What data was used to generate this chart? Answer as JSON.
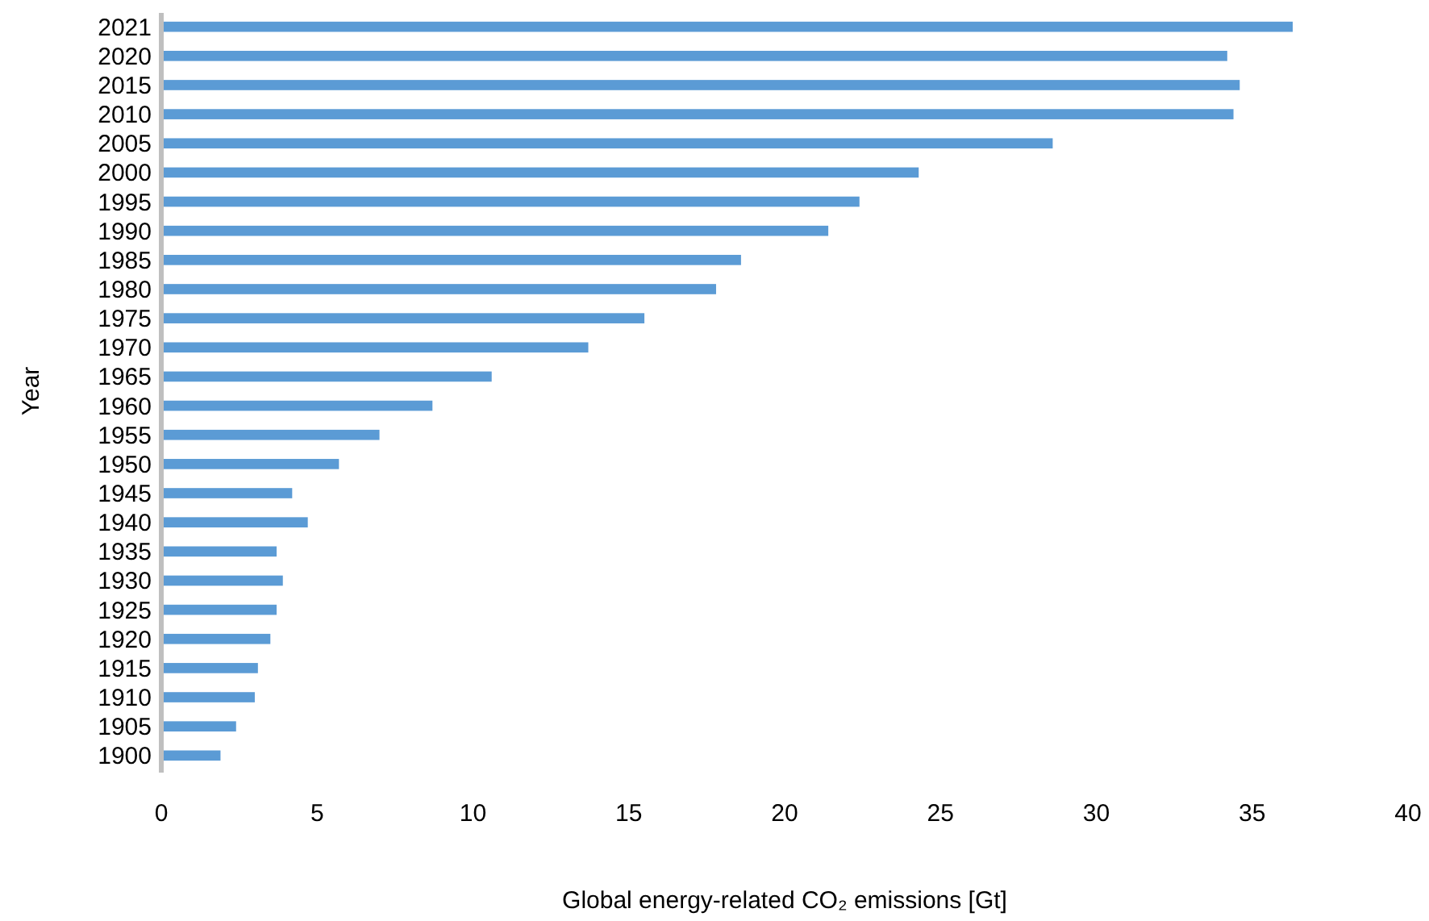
{
  "chart_data": {
    "type": "bar",
    "orientation": "horizontal",
    "xlabel": "Global energy-related CO₂ emissions [Gt]",
    "ylabel": "Year",
    "categories": [
      "2021",
      "2020",
      "2015",
      "2010",
      "2005",
      "2000",
      "1995",
      "1990",
      "1985",
      "1980",
      "1975",
      "1970",
      "1965",
      "1960",
      "1955",
      "1950",
      "1945",
      "1940",
      "1935",
      "1930",
      "1925",
      "1920",
      "1915",
      "1910",
      "1905",
      "1900"
    ],
    "values": [
      36.3,
      34.2,
      34.6,
      34.4,
      28.6,
      24.3,
      22.4,
      21.4,
      18.6,
      17.8,
      15.5,
      13.7,
      10.6,
      8.7,
      7.0,
      5.7,
      4.2,
      4.7,
      3.7,
      3.9,
      3.7,
      3.5,
      3.1,
      3.0,
      2.4,
      1.9
    ],
    "color": "#5b9bd5",
    "xlim": [
      0,
      40
    ],
    "xticks": [
      0,
      5,
      10,
      15,
      20,
      25,
      30,
      35,
      40
    ],
    "grid": false
  }
}
